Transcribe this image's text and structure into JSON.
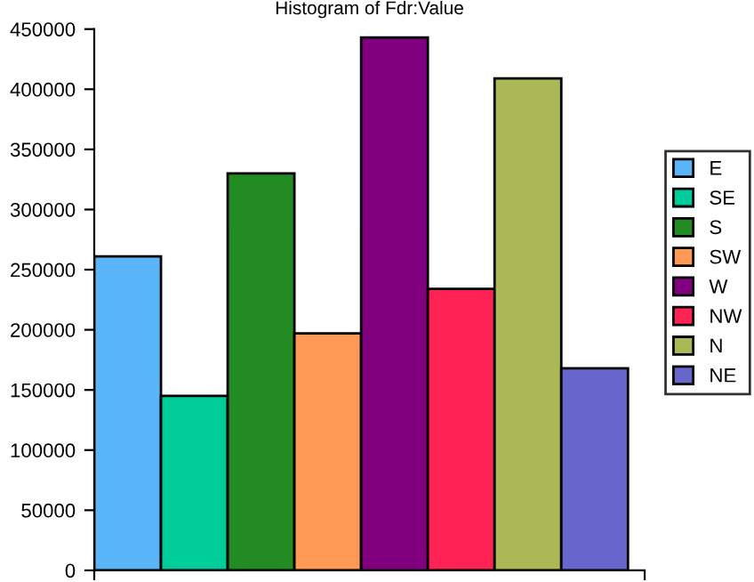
{
  "chart_data": {
    "type": "bar",
    "title": "Histogram of Fdr:Value",
    "categories": [
      null,
      null,
      null,
      null,
      null,
      null,
      null,
      null
    ],
    "series": [
      {
        "name": "E",
        "color": "#5ab4f8",
        "values": [
          261000,
          null,
          null,
          null,
          null,
          null,
          null,
          null
        ]
      },
      {
        "name": "SE",
        "color": "#00cc99",
        "values": [
          null,
          145000,
          null,
          null,
          null,
          null,
          null,
          null
        ]
      },
      {
        "name": "S",
        "color": "#228b22",
        "values": [
          null,
          null,
          330000,
          null,
          null,
          null,
          null,
          null
        ]
      },
      {
        "name": "SW",
        "color": "#ff9955",
        "values": [
          null,
          null,
          null,
          197000,
          null,
          null,
          null,
          null
        ]
      },
      {
        "name": "W",
        "color": "#800080",
        "values": [
          null,
          null,
          null,
          null,
          443000,
          null,
          null,
          null
        ]
      },
      {
        "name": "NW",
        "color": "#ff2255",
        "values": [
          null,
          null,
          null,
          null,
          null,
          234000,
          null,
          null
        ]
      },
      {
        "name": "N",
        "color": "#aab855",
        "values": [
          null,
          null,
          null,
          null,
          null,
          null,
          409000,
          null
        ]
      },
      {
        "name": "NE",
        "color": "#6666cc",
        "values": [
          null,
          null,
          null,
          null,
          null,
          null,
          null,
          168000
        ]
      }
    ],
    "ylim": [
      0,
      450000
    ],
    "yticks": [
      0,
      50000,
      100000,
      150000,
      200000,
      250000,
      300000,
      350000,
      400000,
      450000
    ],
    "grid": false,
    "legend": "right"
  }
}
